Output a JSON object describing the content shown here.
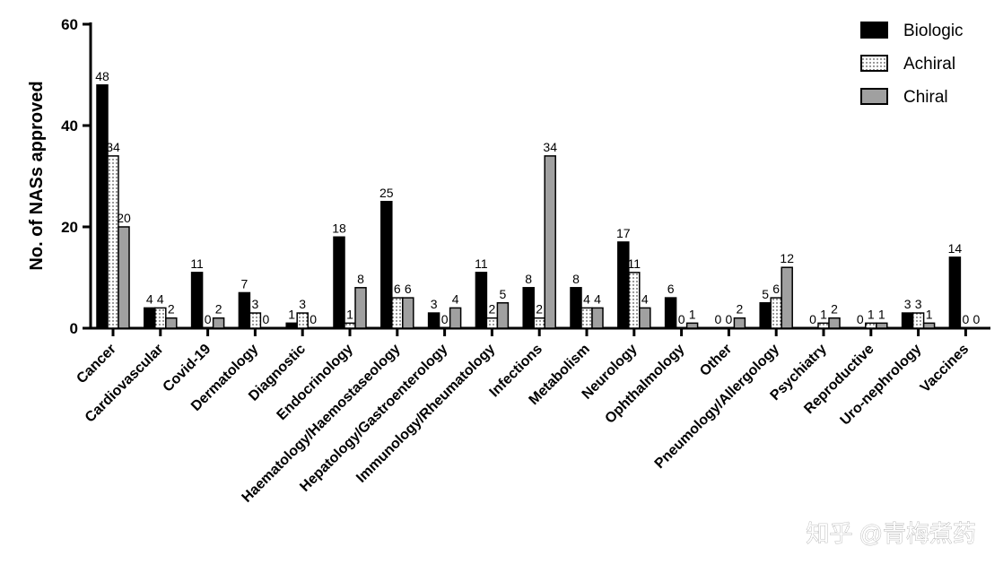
{
  "watermark": "知乎 @青梅煮药",
  "chart_data": {
    "type": "bar",
    "title": "",
    "xlabel": "",
    "ylabel": "No. of NASs approved",
    "ylim": [
      0,
      60
    ],
    "yticks": [
      0,
      20,
      40,
      60
    ],
    "grid": false,
    "legend_position": "top-right",
    "categories": [
      "Cancer",
      "Cardiovascular",
      "Covid-19",
      "Dermatology",
      "Diagnostic",
      "Endocrinology",
      "Haematology/Haemostaseology",
      "Hepatology/Gastroenterology",
      "Immunology/Rheumatology",
      "Infections",
      "Metabolism",
      "Neurology",
      "Ophthalmology",
      "Other",
      "Pneumology/Allergology",
      "Psychiatry",
      "Reproductive",
      "Uro-nephrology",
      "Vaccines"
    ],
    "series": [
      {
        "name": "Biologic",
        "fill": "#000000",
        "pattern": "solid",
        "values": [
          48,
          4,
          11,
          7,
          1,
          18,
          25,
          3,
          11,
          8,
          8,
          17,
          6,
          0,
          5,
          0,
          0,
          3,
          14
        ]
      },
      {
        "name": "Achiral",
        "fill": "#ffffff",
        "pattern": "dotted",
        "values": [
          34,
          4,
          0,
          3,
          3,
          1,
          6,
          0,
          2,
          2,
          4,
          11,
          0,
          0,
          6,
          1,
          1,
          3,
          0
        ]
      },
      {
        "name": "Chiral",
        "fill": "#a0a0a0",
        "pattern": "solid",
        "values": [
          20,
          2,
          2,
          0,
          0,
          8,
          6,
          4,
          5,
          34,
          4,
          4,
          1,
          2,
          12,
          2,
          1,
          1,
          0
        ]
      }
    ]
  }
}
